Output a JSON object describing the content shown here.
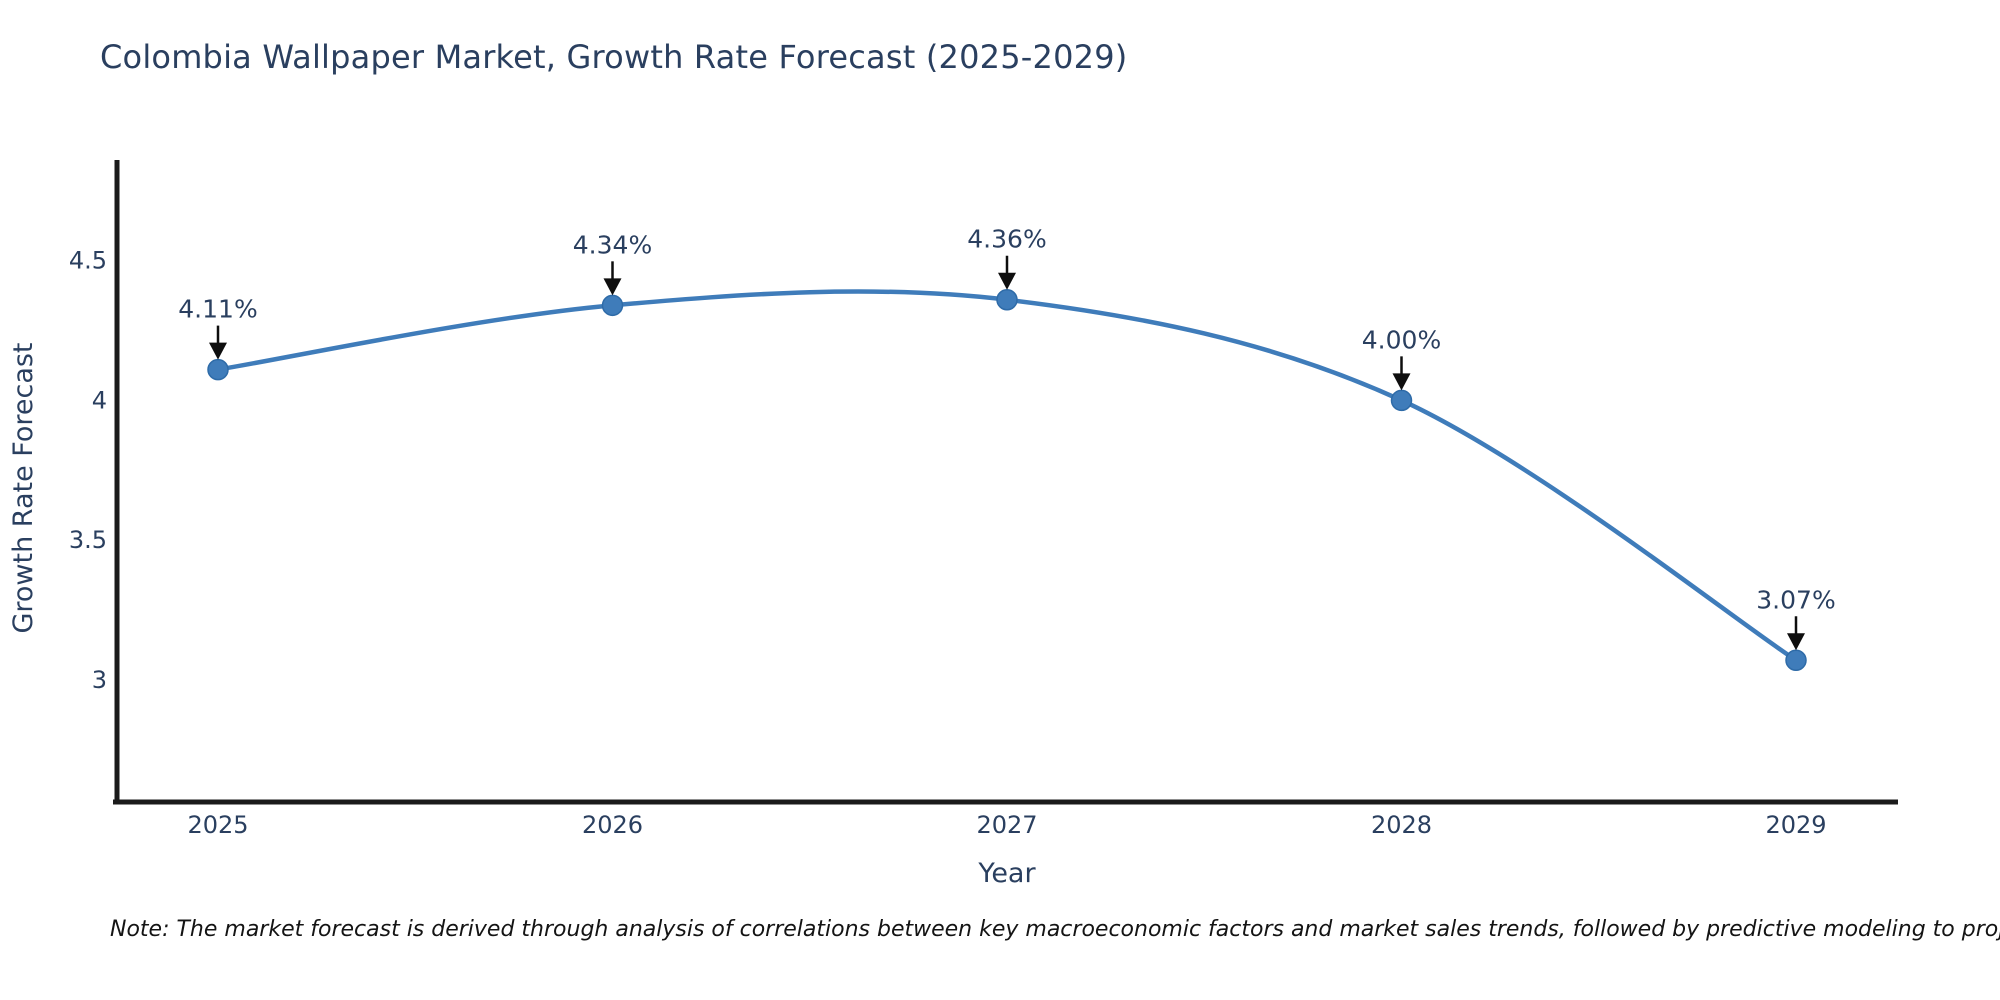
{
  "page": {
    "footnote": "Note: The market forecast is derived through analysis of correlations between key macroeconomic factors and market sales trends, followed by predictive modeling to project future sales"
  },
  "chart_data": {
    "type": "line",
    "title": "Colombia Wallpaper Market, Growth Rate Forecast (2025-2029)",
    "series_name": "Growth Rate Forecast",
    "x": [
      2025,
      2026,
      2027,
      2028,
      2029
    ],
    "y": [
      4.11,
      4.34,
      4.36,
      4.0,
      3.07
    ],
    "point_labels": [
      "4.11%",
      "4.34%",
      "4.36%",
      "4.00%",
      "3.07%"
    ],
    "xlabel": "Year",
    "ylabel": "Growth Rate Forecast",
    "xtick_labels": [
      "2025",
      "2026",
      "2027",
      "2028",
      "2029"
    ],
    "ytick_values": [
      3,
      3.5,
      4,
      4.5
    ],
    "ytick_labels": [
      "3",
      "3.5",
      "4",
      "4.5"
    ],
    "ylim": [
      2.57,
      4.86
    ],
    "curve": "spline",
    "grid": false,
    "legend": "none",
    "annotations_have_arrows": true,
    "colors": {
      "line": "#3f7cba",
      "marker": "#3f7cba",
      "marker_edge": "#2e6ba8",
      "annotation_arrow": "#0e0e0e",
      "text": "#2a3f5f",
      "axis_line": "#1b1b1b",
      "note_text": "#141414",
      "background": "#ffffff"
    }
  }
}
